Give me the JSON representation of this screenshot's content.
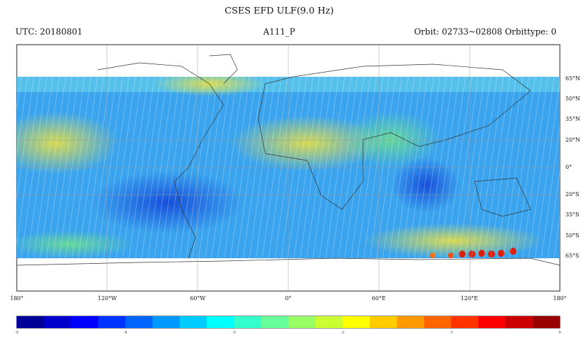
{
  "header": {
    "title": "CSES    EFD    ULF(9.0 Hz)",
    "left": "UTC: 20180801",
    "center": "A111_P",
    "right": "Orbit: 02733~02808  Orbittype: 0"
  },
  "map": {
    "lat_labels": [
      "65°N",
      "50°N",
      "35°N",
      "20°N",
      "0°",
      "20°S",
      "35°S",
      "50°S",
      "65°S"
    ],
    "lon_labels": [
      "180°",
      "120°W",
      "60°W",
      "0°",
      "60°E",
      "120°E",
      "180°"
    ]
  },
  "colorbar": {
    "ticks": [
      "-5",
      "-4",
      "-3",
      "-2",
      "-1",
      "0"
    ]
  }
}
